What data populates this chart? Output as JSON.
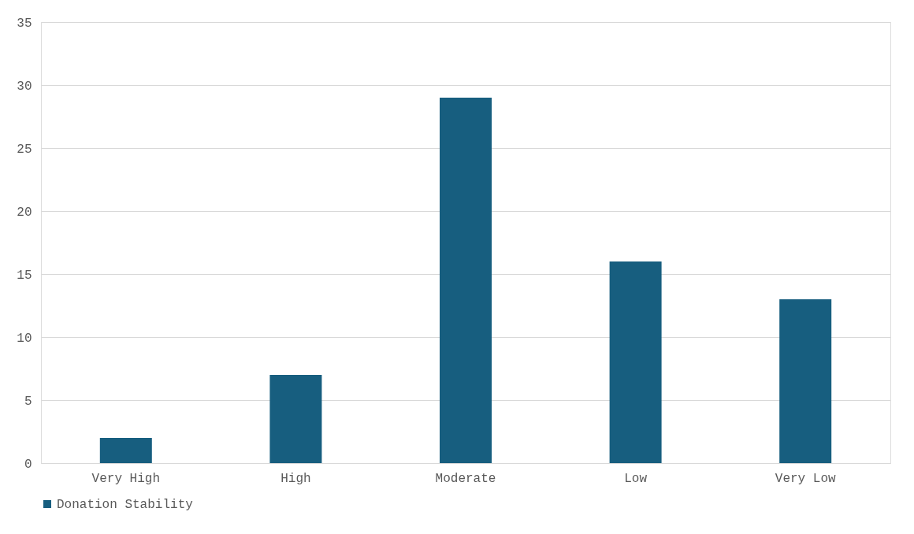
{
  "chart_data": {
    "type": "bar",
    "categories": [
      "Very High",
      "High",
      "Moderate",
      "Low",
      "Very Low"
    ],
    "series": [
      {
        "name": "Donation Stability",
        "color": "#175e7f",
        "values": [
          2,
          7,
          29,
          16,
          13
        ]
      }
    ],
    "ylim": [
      0,
      35
    ],
    "yticks": [
      0,
      5,
      10,
      15,
      20,
      25,
      30,
      35
    ],
    "grid": "y",
    "legend": "bottom"
  }
}
